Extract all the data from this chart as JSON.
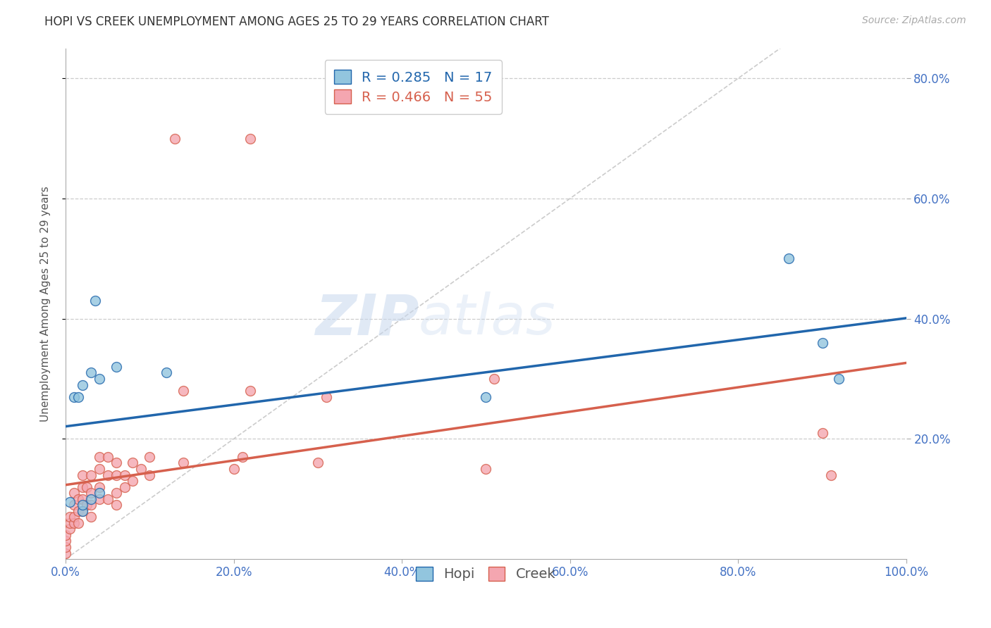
{
  "title": "HOPI VS CREEK UNEMPLOYMENT AMONG AGES 25 TO 29 YEARS CORRELATION CHART",
  "source": "Source: ZipAtlas.com",
  "ylabel": "Unemployment Among Ages 25 to 29 years",
  "xlim": [
    0,
    1.0
  ],
  "ylim": [
    0,
    0.85
  ],
  "ytick_vals": [
    0.2,
    0.4,
    0.6,
    0.8
  ],
  "ytick_labels": [
    "20.0%",
    "40.0%",
    "60.0%",
    "80.0%"
  ],
  "xtick_vals": [
    0.0,
    0.2,
    0.4,
    0.6,
    0.8,
    1.0
  ],
  "xtick_labels": [
    "0.0%",
    "20.0%",
    "40.0%",
    "60.0%",
    "80.0%",
    "100.0%"
  ],
  "hopi_R": 0.285,
  "hopi_N": 17,
  "creek_R": 0.466,
  "creek_N": 55,
  "hopi_color": "#92c5de",
  "creek_color": "#f4a6b0",
  "hopi_line_color": "#2166ac",
  "creek_line_color": "#d6604d",
  "diag_line_color": "#cccccc",
  "background_color": "#ffffff",
  "tick_color": "#4472c4",
  "hopi_scatter_x": [
    0.005,
    0.01,
    0.015,
    0.02,
    0.02,
    0.02,
    0.03,
    0.03,
    0.035,
    0.04,
    0.04,
    0.06,
    0.12,
    0.5,
    0.86,
    0.9,
    0.92
  ],
  "hopi_scatter_y": [
    0.095,
    0.27,
    0.27,
    0.08,
    0.29,
    0.09,
    0.1,
    0.31,
    0.43,
    0.11,
    0.3,
    0.32,
    0.31,
    0.27,
    0.5,
    0.36,
    0.3
  ],
  "creek_scatter_x": [
    0.0,
    0.0,
    0.0,
    0.0,
    0.005,
    0.005,
    0.005,
    0.01,
    0.01,
    0.01,
    0.01,
    0.015,
    0.015,
    0.015,
    0.02,
    0.02,
    0.02,
    0.02,
    0.025,
    0.025,
    0.03,
    0.03,
    0.03,
    0.03,
    0.04,
    0.04,
    0.04,
    0.04,
    0.05,
    0.05,
    0.05,
    0.06,
    0.06,
    0.06,
    0.06,
    0.07,
    0.07,
    0.08,
    0.08,
    0.09,
    0.1,
    0.1,
    0.13,
    0.14,
    0.14,
    0.2,
    0.21,
    0.22,
    0.22,
    0.3,
    0.31,
    0.5,
    0.51,
    0.9,
    0.91
  ],
  "creek_scatter_y": [
    0.01,
    0.02,
    0.03,
    0.04,
    0.05,
    0.06,
    0.07,
    0.06,
    0.07,
    0.09,
    0.11,
    0.06,
    0.08,
    0.1,
    0.08,
    0.1,
    0.12,
    0.14,
    0.09,
    0.12,
    0.07,
    0.09,
    0.11,
    0.14,
    0.1,
    0.12,
    0.15,
    0.17,
    0.1,
    0.14,
    0.17,
    0.09,
    0.11,
    0.14,
    0.16,
    0.12,
    0.14,
    0.13,
    0.16,
    0.15,
    0.14,
    0.17,
    0.7,
    0.16,
    0.28,
    0.15,
    0.17,
    0.28,
    0.7,
    0.16,
    0.27,
    0.15,
    0.3,
    0.21,
    0.14
  ],
  "watermark_zip": "ZIP",
  "watermark_atlas": "atlas",
  "legend_fontsize": 14,
  "title_fontsize": 12,
  "source_fontsize": 10,
  "axis_label_fontsize": 11,
  "tick_fontsize": 12,
  "marker_size": 100
}
